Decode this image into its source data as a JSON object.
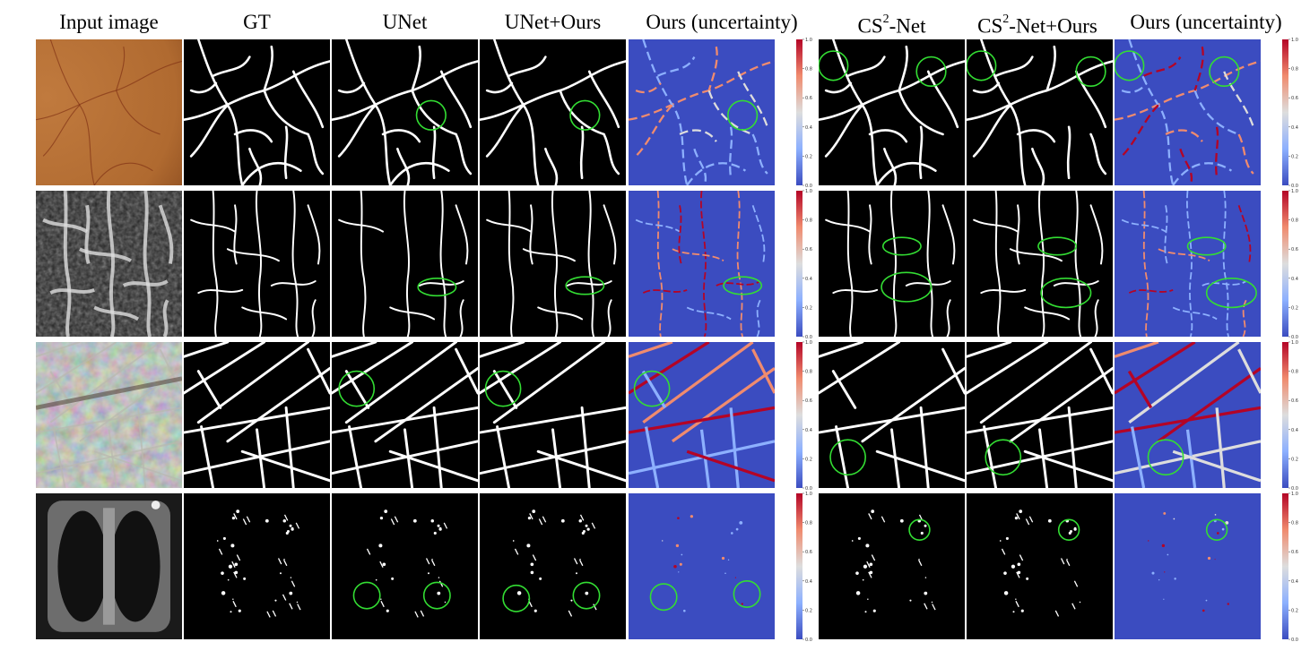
{
  "figure": {
    "columns": [
      {
        "id": "input",
        "label": "Input image",
        "kind": "input"
      },
      {
        "id": "gt",
        "label": "GT",
        "kind": "mask"
      },
      {
        "id": "unet",
        "label": "UNet",
        "kind": "mask"
      },
      {
        "id": "unet_ours",
        "label": "UNet+Ours",
        "kind": "mask"
      },
      {
        "id": "unet_unc",
        "label": "Ours (uncertainty)",
        "kind": "uncertainty"
      },
      {
        "id": "cs2",
        "label_prefix": "CS",
        "label_sup": "2",
        "label_suffix": "-Net",
        "kind": "mask"
      },
      {
        "id": "cs2_ours",
        "label_prefix": "CS",
        "label_sup": "2",
        "label_suffix": "-Net+Ours",
        "kind": "mask"
      },
      {
        "id": "cs2_unc",
        "label": "Ours (uncertainty)",
        "kind": "uncertainty"
      }
    ],
    "rows": [
      {
        "id": "retina",
        "input_style": "retina"
      },
      {
        "id": "octa",
        "input_style": "octa"
      },
      {
        "id": "road",
        "input_style": "aerial"
      },
      {
        "id": "lung",
        "input_style": "ct"
      }
    ],
    "colorbar": {
      "ticks": [
        "1.0",
        "0.8",
        "0.6",
        "0.4",
        "0.2",
        "0.0"
      ],
      "colors": [
        "#b40426",
        "#f08b6e",
        "#dddddd",
        "#8db0fe",
        "#3b4cc0"
      ]
    },
    "highlight_color": "#33dd33",
    "uncertainty_background": "#3b4cc0"
  }
}
